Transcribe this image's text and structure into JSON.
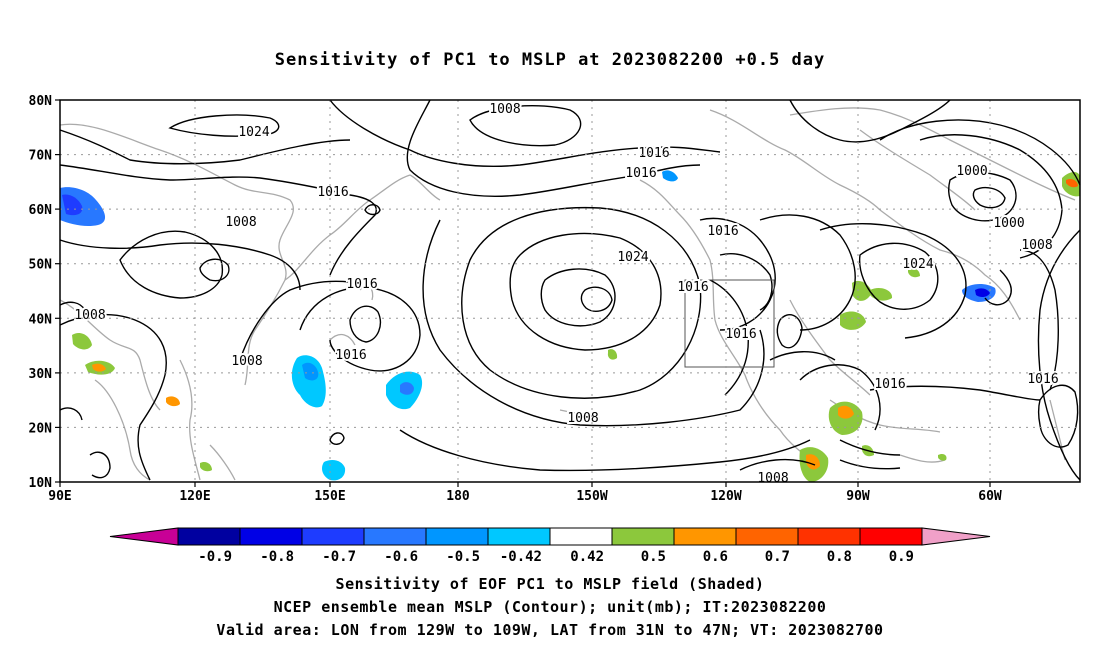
{
  "title": "Sensitivity of PC1 to MSLP at 2023082200 +0.5 day",
  "map": {
    "lat_labels": [
      "80N",
      "70N",
      "60N",
      "50N",
      "40N",
      "30N",
      "20N",
      "10N"
    ],
    "lon_labels": [
      "90E",
      "120E",
      "150E",
      "180",
      "150W",
      "120W",
      "90W",
      "60W"
    ],
    "grid": true,
    "coastline_color": "#aaaaaa",
    "valid_box": {
      "lon_west": "129W",
      "lon_east": "109W",
      "lat_south": "31N",
      "lat_north": "47N"
    },
    "contour_labels": [
      "1008",
      "1024",
      "1016",
      "1008",
      "1016",
      "1016",
      "1000",
      "1000",
      "1008",
      "1024",
      "1016",
      "1016",
      "1024",
      "1016",
      "1008",
      "1016",
      "1016",
      "1008",
      "1016",
      "1016",
      "1008",
      "1008"
    ]
  },
  "colorbar": {
    "labels": [
      "-0.9",
      "-0.8",
      "-0.7",
      "-0.6",
      "-0.5",
      "-0.42",
      "0.42",
      "0.5",
      "0.6",
      "0.7",
      "0.8",
      "0.9"
    ],
    "colors": [
      "#c80096",
      "#0000a0",
      "#0000e6",
      "#1e3cff",
      "#2878ff",
      "#0096ff",
      "#00c8ff",
      "#ffffff",
      "#8cc83c",
      "#ff9600",
      "#ff6400",
      "#ff3200",
      "#ff0000",
      "#f0a0c8"
    ]
  },
  "footer": {
    "line1": "Sensitivity of EOF PC1 to MSLP field (Shaded)",
    "line2": "NCEP ensemble mean MSLP (Contour); unit(mb); IT:2023082200",
    "line3": "Valid area: LON from 129W to 109W, LAT from 31N to 47N; VT: 2023082700"
  }
}
